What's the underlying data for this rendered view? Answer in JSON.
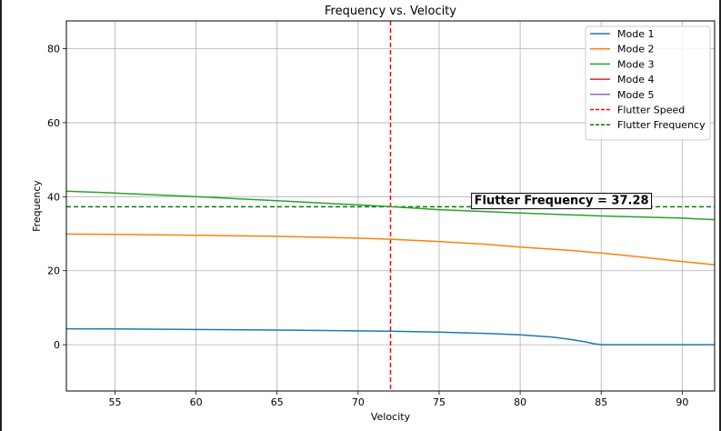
{
  "chart_data": {
    "type": "line",
    "title": "Frequency vs. Velocity",
    "xlabel": "Velocity",
    "ylabel": "Frequency",
    "xlim": [
      52,
      92
    ],
    "ylim": [
      -12.5,
      87.5
    ],
    "xticks": [
      55,
      60,
      65,
      70,
      75,
      80,
      85,
      90
    ],
    "yticks": [
      0,
      20,
      40,
      60,
      80
    ],
    "grid": true,
    "legend_position": "top-right",
    "series": [
      {
        "name": "Mode 1",
        "color": "#1f77b4",
        "x": [
          52,
          55,
          60,
          65,
          70,
          72,
          75,
          78,
          80,
          82,
          83,
          84,
          84.5,
          85,
          86,
          88,
          90,
          92
        ],
        "y": [
          4.3,
          4.25,
          4.1,
          3.95,
          3.75,
          3.65,
          3.4,
          3.05,
          2.65,
          2.05,
          1.5,
          0.8,
          0.3,
          0,
          0,
          0,
          0,
          0
        ]
      },
      {
        "name": "Mode 2",
        "color": "#ff7f0e",
        "x": [
          52,
          55,
          60,
          65,
          70,
          72,
          75,
          78,
          80,
          83,
          85,
          87,
          90,
          92
        ],
        "y": [
          29.9,
          29.8,
          29.6,
          29.3,
          28.8,
          28.5,
          27.9,
          27.1,
          26.4,
          25.5,
          24.8,
          23.9,
          22.5,
          21.6
        ]
      },
      {
        "name": "Mode 3",
        "color": "#2ca02c",
        "x": [
          52,
          55,
          60,
          65,
          70,
          72,
          75,
          80,
          85,
          90,
          92
        ],
        "y": [
          41.5,
          41.0,
          40.0,
          38.9,
          37.8,
          37.3,
          36.5,
          35.6,
          34.8,
          34.2,
          33.8
        ]
      },
      {
        "name": "Mode 4",
        "color": "#d62728",
        "x": [],
        "y": []
      },
      {
        "name": "Mode 5",
        "color": "#9467bd",
        "x": [],
        "y": []
      }
    ],
    "reference_lines": [
      {
        "name": "Flutter Speed",
        "orientation": "vertical",
        "value": 72,
        "color": "#ff0000",
        "style": "dashed"
      },
      {
        "name": "Flutter Frequency",
        "orientation": "horizontal",
        "value": 37.28,
        "color": "#008000",
        "style": "dashed"
      }
    ],
    "annotation": {
      "text": "Flutter Frequency = 37.28",
      "x": 77,
      "y": 39.2
    }
  }
}
